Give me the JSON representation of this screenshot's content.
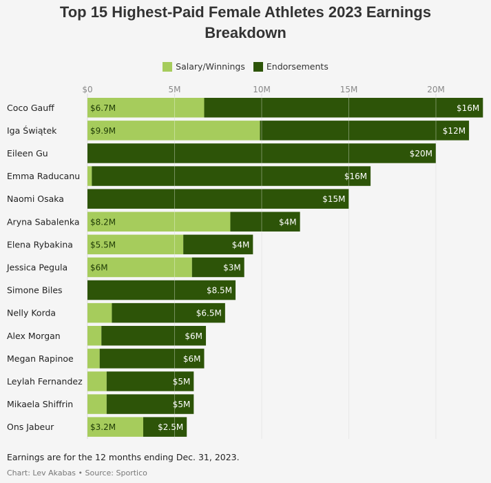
{
  "title_line1": "Top 15 Highest-Paid Female Athletes 2023 Earnings",
  "title_line2": "Breakdown",
  "note": "Earnings are for the 12 months ending Dec. 31, 2023.",
  "credit": "Chart: Lev Akabas • Source: Sportico",
  "colors": {
    "salary": "#a6cc5c",
    "endorsements": "#2d5408"
  },
  "chart_data": {
    "type": "bar",
    "orientation": "horizontal",
    "stacked": true,
    "title": "Top 15 Highest-Paid Female Athletes 2023 Earnings Breakdown",
    "xlim": [
      0,
      22.5
    ],
    "xticks": [
      0,
      5,
      10,
      15,
      20
    ],
    "xtick_labels": [
      "$0",
      "5M",
      "10M",
      "15M",
      "20M"
    ],
    "legend_position": "top-center",
    "grid": true,
    "categories": [
      "Coco Gauff",
      "Iga Świątek",
      "Eileen Gu",
      "Emma Raducanu",
      "Naomi Osaka",
      "Aryna Sabalenka",
      "Elena Rybakina",
      "Jessica Pegula",
      "Simone Biles",
      "Nelly Korda",
      "Alex Morgan",
      "Megan Rapinoe",
      "Leylah Fernandez",
      "Mikaela Shiffrin",
      "Ons Jabeur"
    ],
    "series": [
      {
        "name": "Salary/Winnings",
        "color": "#a6cc5c",
        "values": [
          6.7,
          9.9,
          0,
          0.25,
          0,
          8.2,
          5.5,
          6,
          0,
          1.4,
          0.8,
          0.7,
          1.1,
          1.1,
          3.2
        ],
        "labels": [
          "$6.7M",
          "$9.9M",
          "",
          "",
          "",
          "$8.2M",
          "$5.5M",
          "$6M",
          "",
          "",
          "",
          "",
          "",
          "",
          "$3.2M"
        ]
      },
      {
        "name": "Endorsements",
        "color": "#2d5408",
        "values": [
          16,
          12,
          20,
          16,
          15,
          4,
          4,
          3,
          8.5,
          6.5,
          6,
          6,
          5,
          5,
          2.5
        ],
        "labels": [
          "$16M",
          "$12M",
          "$20M",
          "$16M",
          "$15M",
          "$4M",
          "$4M",
          "$3M",
          "$8.5M",
          "$6.5M",
          "$6M",
          "$6M",
          "$5M",
          "$5M",
          "$2.5M"
        ]
      }
    ]
  }
}
